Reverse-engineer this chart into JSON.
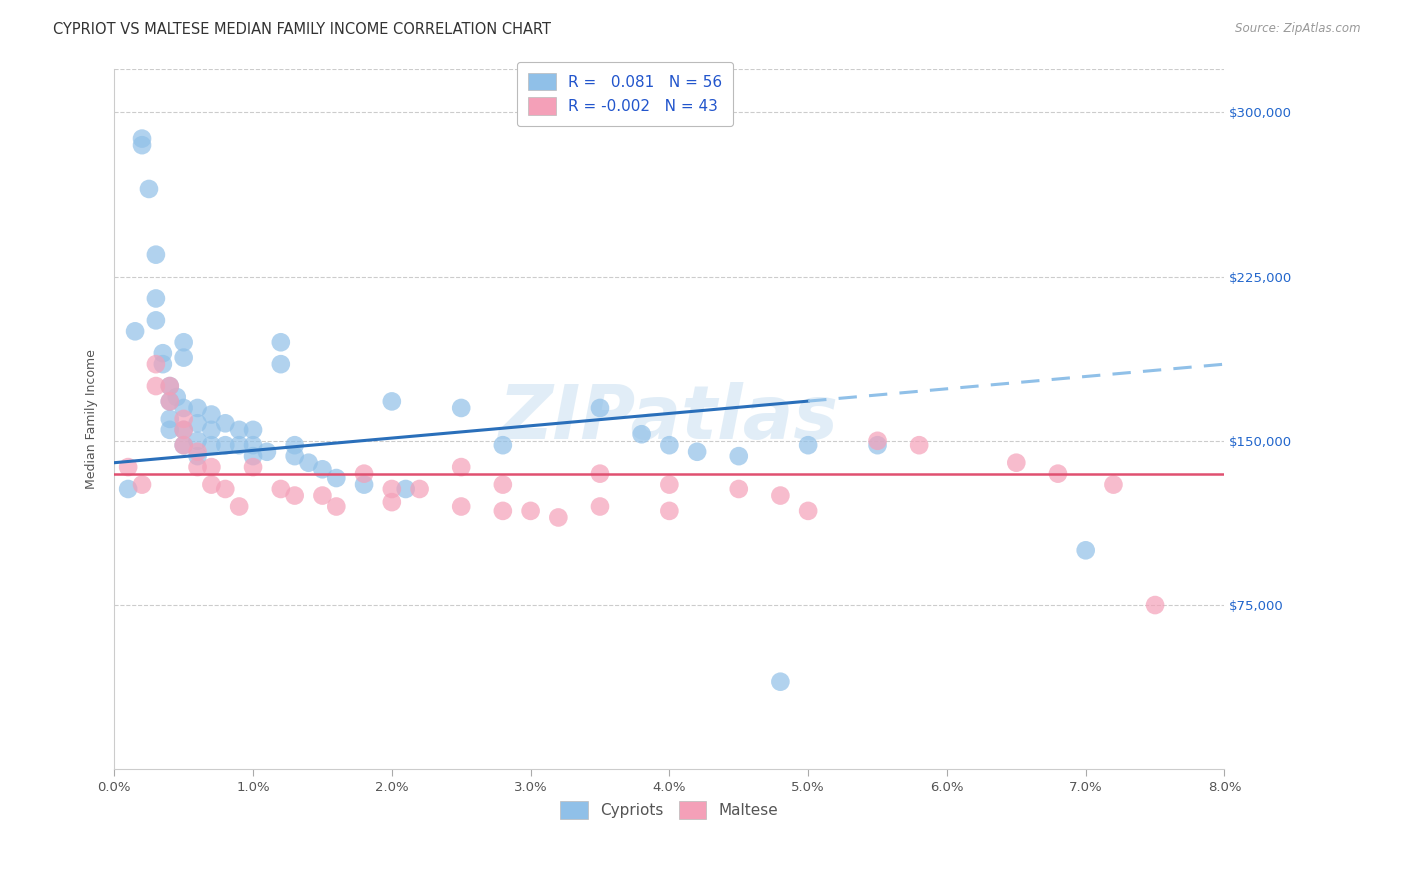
{
  "title": "CYPRIOT VS MALTESE MEDIAN FAMILY INCOME CORRELATION CHART",
  "source": "Source: ZipAtlas.com",
  "ylabel": "Median Family Income",
  "xmin": 0.0,
  "xmax": 0.08,
  "ymin": 0,
  "ymax": 320000,
  "ytick_vals": [
    75000,
    150000,
    225000,
    300000
  ],
  "ytick_labels": [
    "$75,000",
    "$150,000",
    "$225,000",
    "$300,000"
  ],
  "xtick_vals": [
    0.0,
    0.01,
    0.02,
    0.03,
    0.04,
    0.05,
    0.06,
    0.07,
    0.08
  ],
  "xtick_labels": [
    "0.0%",
    "1.0%",
    "2.0%",
    "3.0%",
    "4.0%",
    "5.0%",
    "6.0%",
    "7.0%",
    "8.0%"
  ],
  "grid_color": "#cccccc",
  "background_color": "#ffffff",
  "watermark": "ZIPatlas",
  "cypriot_color": "#90c0e8",
  "maltese_color": "#f4a0b8",
  "cypriot_line_solid": "#2a6fba",
  "cypriot_line_dashed": "#90c0e8",
  "maltese_line": "#e05070",
  "marker_size": 180,
  "cypriot_x": [
    0.001,
    0.0015,
    0.002,
    0.002,
    0.0025,
    0.003,
    0.003,
    0.003,
    0.0035,
    0.0035,
    0.004,
    0.004,
    0.004,
    0.004,
    0.0045,
    0.005,
    0.005,
    0.005,
    0.005,
    0.005,
    0.006,
    0.006,
    0.006,
    0.006,
    0.007,
    0.007,
    0.007,
    0.008,
    0.008,
    0.009,
    0.009,
    0.01,
    0.01,
    0.01,
    0.011,
    0.012,
    0.012,
    0.013,
    0.013,
    0.014,
    0.015,
    0.016,
    0.018,
    0.02,
    0.021,
    0.025,
    0.028,
    0.035,
    0.038,
    0.04,
    0.042,
    0.045,
    0.048,
    0.05,
    0.055,
    0.07
  ],
  "cypriot_y": [
    128000,
    200000,
    285000,
    288000,
    265000,
    235000,
    215000,
    205000,
    190000,
    185000,
    175000,
    168000,
    160000,
    155000,
    170000,
    195000,
    188000,
    165000,
    155000,
    148000,
    165000,
    158000,
    150000,
    143000,
    162000,
    155000,
    148000,
    158000,
    148000,
    155000,
    148000,
    155000,
    148000,
    143000,
    145000,
    195000,
    185000,
    148000,
    143000,
    140000,
    137000,
    133000,
    130000,
    168000,
    128000,
    165000,
    148000,
    165000,
    153000,
    148000,
    145000,
    143000,
    40000,
    148000,
    148000,
    100000
  ],
  "maltese_x": [
    0.001,
    0.002,
    0.003,
    0.003,
    0.004,
    0.004,
    0.005,
    0.005,
    0.005,
    0.006,
    0.006,
    0.007,
    0.007,
    0.008,
    0.009,
    0.01,
    0.012,
    0.013,
    0.015,
    0.016,
    0.018,
    0.02,
    0.02,
    0.022,
    0.025,
    0.025,
    0.028,
    0.028,
    0.03,
    0.032,
    0.035,
    0.035,
    0.04,
    0.04,
    0.045,
    0.048,
    0.05,
    0.055,
    0.058,
    0.065,
    0.068,
    0.072,
    0.075
  ],
  "maltese_y": [
    138000,
    130000,
    185000,
    175000,
    175000,
    168000,
    160000,
    155000,
    148000,
    145000,
    138000,
    138000,
    130000,
    128000,
    120000,
    138000,
    128000,
    125000,
    125000,
    120000,
    135000,
    128000,
    122000,
    128000,
    138000,
    120000,
    130000,
    118000,
    118000,
    115000,
    135000,
    120000,
    130000,
    118000,
    128000,
    125000,
    118000,
    150000,
    148000,
    140000,
    135000,
    130000,
    75000
  ],
  "title_fontsize": 10.5,
  "source_fontsize": 8.5,
  "axis_label_fontsize": 9,
  "tick_fontsize": 9.5,
  "legend_fontsize": 11
}
